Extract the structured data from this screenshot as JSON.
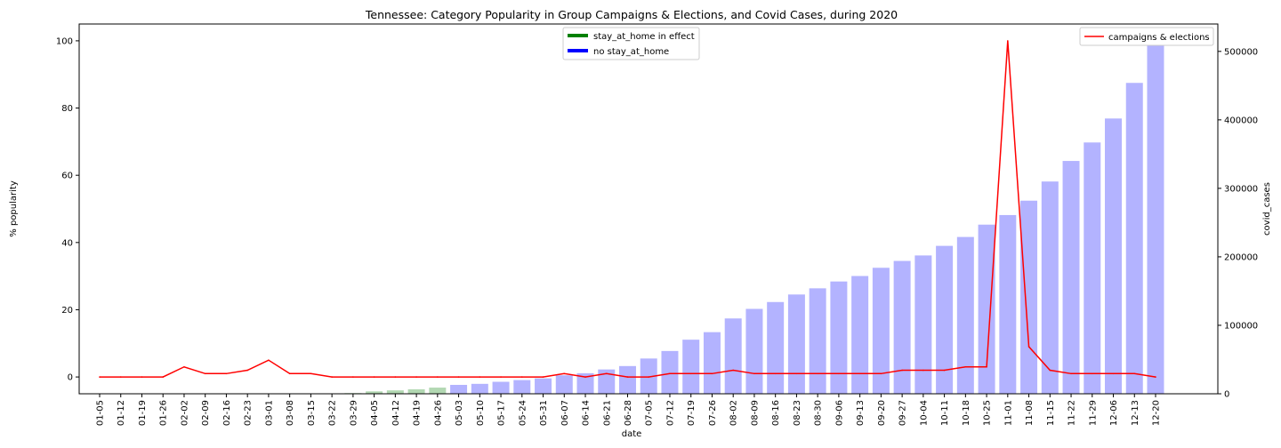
{
  "chart_data": {
    "type": "bar",
    "title": "Tennessee: Category Popularity in Group Campaigns & Elections, and Covid Cases, during 2020",
    "xlabel": "date",
    "ylabel_left": "% popularity",
    "ylabel_right": "covid_cases",
    "ylim_left": [
      -5,
      105
    ],
    "ylim_right": [
      0,
      540000
    ],
    "yticks_left": [
      0,
      20,
      40,
      60,
      80,
      100
    ],
    "yticks_right": [
      0,
      100000,
      200000,
      300000,
      400000,
      500000
    ],
    "grid": false,
    "categories": [
      "01-05",
      "01-12",
      "01-19",
      "01-26",
      "02-02",
      "02-09",
      "02-16",
      "02-23",
      "03-01",
      "03-08",
      "03-15",
      "03-22",
      "03-29",
      "04-05",
      "04-12",
      "04-19",
      "04-26",
      "05-03",
      "05-10",
      "05-17",
      "05-24",
      "05-31",
      "06-07",
      "06-14",
      "06-21",
      "06-28",
      "07-05",
      "07-12",
      "07-19",
      "07-26",
      "08-02",
      "08-09",
      "08-16",
      "08-23",
      "08-30",
      "09-06",
      "09-13",
      "09-20",
      "09-27",
      "10-04",
      "10-11",
      "10-18",
      "10-25",
      "11-01",
      "11-08",
      "11-15",
      "11-22",
      "11-29",
      "12-06",
      "12-13",
      "12-20"
    ],
    "bars": {
      "name": "covid_cases",
      "axis": "right",
      "values": [
        0,
        0,
        0,
        0,
        0,
        0,
        0,
        0,
        0,
        0,
        0,
        0,
        1000,
        3500,
        5000,
        6500,
        9000,
        13000,
        14500,
        17500,
        20000,
        22500,
        27000,
        30000,
        35500,
        40500,
        51500,
        62500,
        79000,
        90000,
        110000,
        124000,
        134000,
        145000,
        154000,
        164000,
        172000,
        184000,
        194000,
        202000,
        216000,
        229000,
        247000,
        261000,
        282000,
        310000,
        340000,
        367000,
        402000,
        454000,
        520000
      ],
      "stay_at_home_flags": [
        0,
        0,
        0,
        0,
        0,
        0,
        0,
        0,
        0,
        0,
        0,
        0,
        1,
        1,
        1,
        1,
        1,
        0,
        0,
        0,
        0,
        0,
        0,
        0,
        0,
        0,
        0,
        0,
        0,
        0,
        0,
        0,
        0,
        0,
        0,
        0,
        0,
        0,
        0,
        0,
        0,
        0,
        0,
        0,
        0,
        0,
        0,
        0,
        0,
        0,
        0
      ]
    },
    "series": [
      {
        "name": "campaigns & elections",
        "axis": "left",
        "values": [
          0,
          0,
          0,
          0,
          3,
          1,
          1,
          2,
          5,
          1,
          1,
          0,
          0,
          0,
          0,
          0,
          0,
          0,
          0,
          0,
          0,
          0,
          1,
          0,
          1,
          0,
          0,
          1,
          1,
          1,
          2,
          1,
          1,
          1,
          1,
          1,
          1,
          1,
          2,
          2,
          2,
          3,
          3,
          100,
          9,
          2,
          1,
          1,
          1,
          1,
          0
        ]
      }
    ],
    "legend_left": {
      "placement": "top-center",
      "entries": [
        {
          "label": "stay_at_home in effect",
          "color": "#008000"
        },
        {
          "label": "no stay_at_home",
          "color": "#0000ff"
        }
      ]
    },
    "legend_right": {
      "placement": "top-right",
      "entries": [
        {
          "label": "campaigns & elections",
          "color": "#ff0000"
        }
      ]
    },
    "colors": {
      "bar_default": "#b3b3ff",
      "bar_stay_at_home": "#b2d8b2",
      "line": "#ff0000"
    }
  }
}
